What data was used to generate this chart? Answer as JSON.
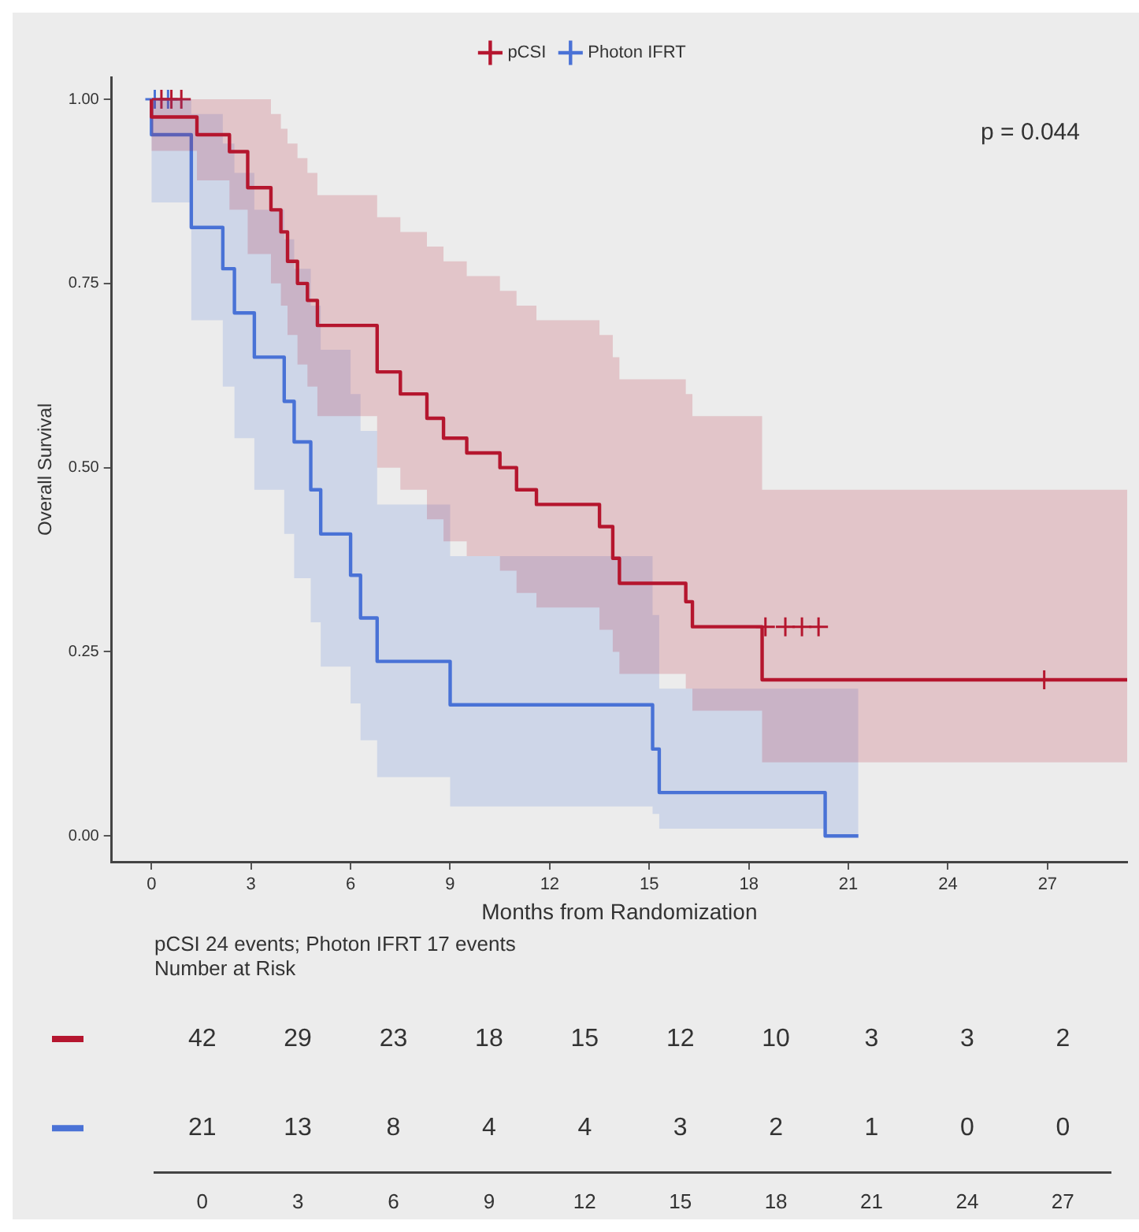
{
  "chart_data": [
    {
      "type": "step",
      "xlabel": "Months from Randomization",
      "ylabel": "Overall Survival",
      "xlim": [
        -1.2,
        29.4
      ],
      "ylim": [
        -0.035,
        1.03
      ],
      "xticks": [
        0,
        3,
        6,
        9,
        12,
        15,
        18,
        21,
        24,
        27
      ],
      "yticks": [
        {
          "value": 0,
          "label": "0.00"
        },
        {
          "value": 0.25,
          "label": "0.25"
        },
        {
          "value": 0.5,
          "label": "0.50"
        },
        {
          "value": 0.75,
          "label": "0.75"
        },
        {
          "value": 1,
          "label": "1.00"
        }
      ],
      "grid": false,
      "legend": "top",
      "line_style": "solid",
      "annotations": [
        "p = 0.044"
      ],
      "series": [
        {
          "name": "pCSI",
          "color": "#b5162f",
          "x": [
            0,
            1.37,
            2.35,
            2.9,
            3.6,
            3.9,
            4.1,
            4.4,
            4.7,
            5.0,
            6.8,
            7.5,
            8.3,
            8.8,
            9.5,
            10.5,
            11.0,
            11.6,
            13.5,
            13.9,
            14.1,
            16.1,
            16.3,
            18.4,
            20.6,
            29.4
          ],
          "values": [
            1,
            0.976,
            0.952,
            0.929,
            0.88,
            0.85,
            0.82,
            0.78,
            0.75,
            0.727,
            0.693,
            0.63,
            0.6,
            0.567,
            0.54,
            0.52,
            0.5,
            0.47,
            0.45,
            0.42,
            0.377,
            0.343,
            0.318,
            0.284,
            0.212,
            0.212
          ],
          "upper": [
            1,
            1,
            1,
            1,
            1,
            0.98,
            0.96,
            0.94,
            0.92,
            0.9,
            0.87,
            0.84,
            0.82,
            0.8,
            0.78,
            0.76,
            0.74,
            0.72,
            0.7,
            0.68,
            0.65,
            0.62,
            0.6,
            0.57,
            0.47,
            0.47
          ],
          "lower": [
            1,
            0.93,
            0.89,
            0.85,
            0.79,
            0.75,
            0.72,
            0.68,
            0.64,
            0.61,
            0.57,
            0.5,
            0.47,
            0.43,
            0.4,
            0.38,
            0.36,
            0.33,
            0.31,
            0.28,
            0.25,
            0.22,
            0.2,
            0.17,
            0.1,
            0.1
          ]
        },
        {
          "name": "Photon IFRT",
          "color": "#4a72d6",
          "x": [
            0,
            1.2,
            2.15,
            2.5,
            3.1,
            4.0,
            4.3,
            4.8,
            5.1,
            6.0,
            6.3,
            6.8,
            9.0,
            15.1,
            15.3,
            20.3,
            21.3
          ],
          "values": [
            1,
            0.952,
            0.826,
            0.77,
            0.71,
            0.65,
            0.59,
            0.535,
            0.47,
            0.41,
            0.354,
            0.296,
            0.237,
            0.178,
            0.118,
            0.059,
            0
          ],
          "upper": [
            1,
            1,
            0.98,
            0.94,
            0.9,
            0.85,
            0.81,
            0.77,
            0.72,
            0.66,
            0.6,
            0.55,
            0.45,
            0.38,
            0.3,
            0.2,
            0.2
          ],
          "lower": [
            1,
            0.86,
            0.7,
            0.61,
            0.54,
            0.47,
            0.41,
            0.35,
            0.29,
            0.23,
            0.18,
            0.13,
            0.08,
            0.04,
            0.03,
            0.01,
            0
          ]
        },
        {
          "type": "scatter",
          "marker": "cross",
          "color": "#b5162f",
          "x": [
            0.3,
            0.6,
            0.9,
            18.5,
            19.1,
            19.6,
            20.1,
            26.9
          ],
          "values": [
            1,
            1,
            1,
            0.284,
            0.284,
            0.284,
            0.284,
            0.212
          ]
        },
        {
          "type": "scatter",
          "marker": "cross",
          "color": "#4a72d6",
          "x": [
            0.1,
            0.5
          ],
          "values": [
            1,
            1
          ]
        }
      ]
    },
    {
      "type": "heatmap",
      "title": "pCSI 24 events; Photon IFRT 17 events",
      "subtitle": "Number at Risk",
      "categories": [
        "0",
        "3",
        "6",
        "9",
        "12",
        "15",
        "18",
        "21",
        "24",
        "27"
      ],
      "y_categories": [
        null,
        null
      ],
      "data_labels": true,
      "cells": [
        [
          42,
          29,
          23,
          18,
          15,
          12,
          10,
          3,
          3,
          2
        ],
        [
          21,
          13,
          8,
          4,
          4,
          3,
          2,
          1,
          0,
          0
        ]
      ]
    }
  ]
}
